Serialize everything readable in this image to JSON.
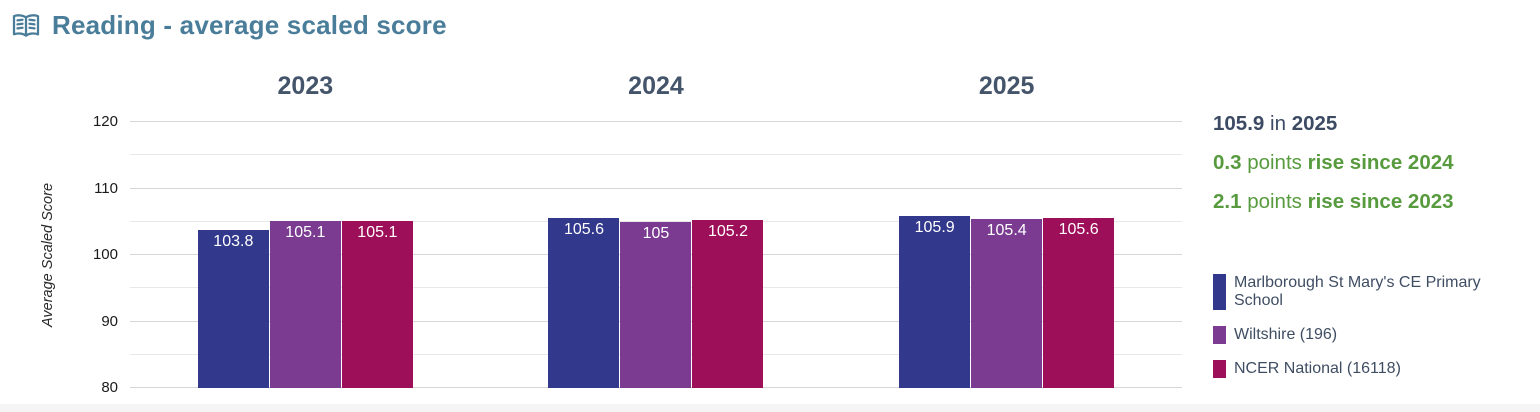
{
  "header": {
    "title": "Reading - average scaled score",
    "icon": "book-icon",
    "title_color": "#4a7d99"
  },
  "summary": {
    "headline": {
      "value": "105.9",
      "connector": "in",
      "year": "2025"
    },
    "changes": [
      {
        "value": "0.3",
        "unit": "points",
        "description": "rise since 2024"
      },
      {
        "value": "2.1",
        "unit": "points",
        "description": "rise since 2023"
      }
    ],
    "headline_color": "#3c4a63",
    "positive_color": "#579b3e"
  },
  "chart_data": {
    "type": "bar",
    "title": "Reading - average scaled score",
    "categories": [
      "2023",
      "2024",
      "2025"
    ],
    "series": [
      {
        "name": "Marlborough St Mary's CE Primary School",
        "color": "#32388c",
        "values": [
          103.8,
          105.6,
          105.9
        ],
        "labels": [
          "103.8",
          "105.6",
          "105.9"
        ]
      },
      {
        "name": "Wiltshire (196)",
        "color": "#7a3b91",
        "values": [
          105.1,
          105,
          105.4
        ],
        "labels": [
          "105.1",
          "105",
          "105.4"
        ]
      },
      {
        "name": "NCER National (16118)",
        "color": "#9e0f5a",
        "values": [
          105.1,
          105.2,
          105.6
        ],
        "labels": [
          "105.1",
          "105.2",
          "105.6"
        ]
      }
    ],
    "xlabel": "",
    "ylabel": "Average Scaled Score",
    "ylim": [
      80,
      120
    ],
    "yticks": [
      80,
      90,
      100,
      110,
      120
    ],
    "yticks_minor": [
      85,
      95,
      105,
      115
    ],
    "grid": true,
    "legend_position": "right",
    "value_labels": "inside-top"
  }
}
